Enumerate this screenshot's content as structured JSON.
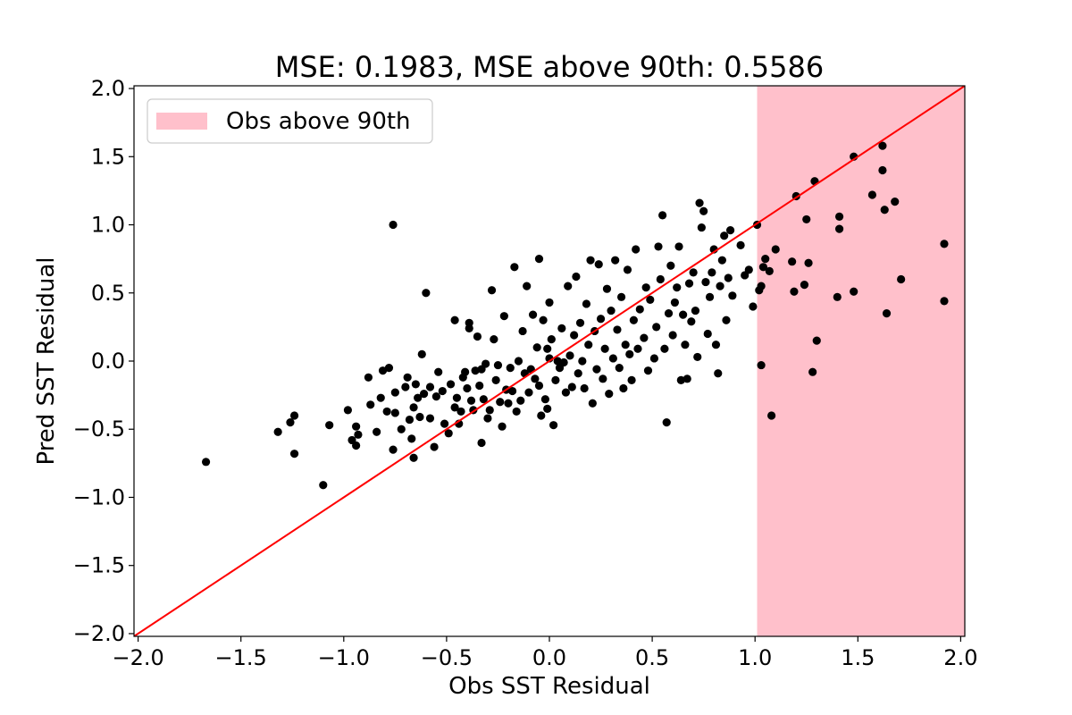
{
  "chart_data": {
    "type": "scatter",
    "title": "MSE: 0.1983, MSE above 90th: 0.5586",
    "xlabel": "Obs SST Residual",
    "ylabel": "Pred SST Residual",
    "xlim": [
      -2.02,
      2.02
    ],
    "ylim": [
      -2.02,
      2.02
    ],
    "xticks": [
      -2.0,
      -1.5,
      -1.0,
      -0.5,
      0.0,
      0.5,
      1.0,
      1.5,
      2.0
    ],
    "yticks": [
      -2.0,
      -1.5,
      -1.0,
      -0.5,
      0.0,
      0.5,
      1.0,
      1.5,
      2.0
    ],
    "xtick_labels": [
      "−2.0",
      "−1.5",
      "−1.0",
      "−0.5",
      "0.0",
      "0.5",
      "1.0",
      "1.5",
      "2.0"
    ],
    "ytick_labels": [
      "−2.0",
      "−1.5",
      "−1.0",
      "−0.5",
      "0.0",
      "0.5",
      "1.0",
      "1.5",
      "2.0"
    ],
    "grid": false,
    "legend": {
      "position": "top-left",
      "entries": [
        {
          "label": "Obs above 90th",
          "color": "#ffc0cb"
        }
      ]
    },
    "threshold_region": {
      "x_start": 1.01,
      "x_end": 2.02,
      "color": "#ffc0cb"
    },
    "identity_line": {
      "from": [
        -2.02,
        -2.02
      ],
      "to": [
        2.02,
        2.02
      ],
      "color": "#ff0000"
    },
    "point_color": "#000000",
    "points": [
      [
        -1.67,
        -0.74
      ],
      [
        -1.32,
        -0.52
      ],
      [
        -1.26,
        -0.45
      ],
      [
        -1.24,
        -0.4
      ],
      [
        -1.24,
        -0.68
      ],
      [
        -1.1,
        -0.91
      ],
      [
        -1.07,
        -0.47
      ],
      [
        -0.98,
        -0.36
      ],
      [
        -0.96,
        -0.58
      ],
      [
        -0.94,
        -0.48
      ],
      [
        -0.94,
        -0.62
      ],
      [
        -0.93,
        -0.54
      ],
      [
        -0.88,
        -0.12
      ],
      [
        -0.87,
        -0.32
      ],
      [
        -0.84,
        -0.52
      ],
      [
        -0.82,
        -0.27
      ],
      [
        -0.81,
        -0.07
      ],
      [
        -0.79,
        -0.37
      ],
      [
        -0.78,
        -0.05
      ],
      [
        -0.76,
        1.0
      ],
      [
        -0.76,
        -0.65
      ],
      [
        -0.75,
        -0.38
      ],
      [
        -0.75,
        -0.23
      ],
      [
        -0.72,
        -0.5
      ],
      [
        -0.7,
        -0.19
      ],
      [
        -0.69,
        -0.12
      ],
      [
        -0.68,
        -0.43
      ],
      [
        -0.67,
        -0.57
      ],
      [
        -0.66,
        -0.34
      ],
      [
        -0.66,
        -0.71
      ],
      [
        -0.65,
        -0.17
      ],
      [
        -0.64,
        -0.27
      ],
      [
        -0.63,
        -0.41
      ],
      [
        -0.62,
        0.05
      ],
      [
        -0.61,
        -0.24
      ],
      [
        -0.6,
        0.5
      ],
      [
        -0.58,
        -0.19
      ],
      [
        -0.58,
        -0.42
      ],
      [
        -0.56,
        -0.63
      ],
      [
        -0.55,
        -0.26
      ],
      [
        -0.54,
        -0.08
      ],
      [
        -0.52,
        -0.22
      ],
      [
        -0.51,
        -0.46
      ],
      [
        -0.49,
        -0.53
      ],
      [
        -0.48,
        -0.17
      ],
      [
        -0.46,
        -0.34
      ],
      [
        -0.46,
        0.3
      ],
      [
        -0.45,
        -0.27
      ],
      [
        -0.44,
        -0.46
      ],
      [
        -0.43,
        -0.37
      ],
      [
        -0.42,
        -0.12
      ],
      [
        -0.41,
        -0.08
      ],
      [
        -0.4,
        -0.2
      ],
      [
        -0.39,
        0.24
      ],
      [
        -0.39,
        0.28
      ],
      [
        -0.38,
        -0.29
      ],
      [
        -0.37,
        -0.36
      ],
      [
        -0.36,
        -0.07
      ],
      [
        -0.35,
        0.18
      ],
      [
        -0.34,
        -0.18
      ],
      [
        -0.33,
        -0.6
      ],
      [
        -0.33,
        -0.06
      ],
      [
        -0.32,
        -0.28
      ],
      [
        -0.31,
        -0.02
      ],
      [
        -0.3,
        -0.42
      ],
      [
        -0.29,
        -0.36
      ],
      [
        -0.28,
        0.52
      ],
      [
        -0.27,
        0.16
      ],
      [
        -0.26,
        -0.14
      ],
      [
        -0.25,
        -0.03
      ],
      [
        -0.24,
        -0.3
      ],
      [
        -0.23,
        -0.48
      ],
      [
        -0.22,
        0.33
      ],
      [
        -0.21,
        -0.21
      ],
      [
        -0.2,
        -0.31
      ],
      [
        -0.19,
        -0.05
      ],
      [
        -0.18,
        -0.22
      ],
      [
        -0.17,
        0.69
      ],
      [
        -0.16,
        -0.37
      ],
      [
        -0.15,
        0.0
      ],
      [
        -0.14,
        -0.29
      ],
      [
        -0.13,
        0.22
      ],
      [
        -0.12,
        -0.09
      ],
      [
        -0.11,
        0.55
      ],
      [
        -0.1,
        -0.23
      ],
      [
        -0.09,
        -0.06
      ],
      [
        -0.08,
        0.34
      ],
      [
        -0.07,
        -0.13
      ],
      [
        -0.06,
        0.1
      ],
      [
        -0.05,
        -0.18
      ],
      [
        -0.05,
        0.75
      ],
      [
        -0.04,
        -0.4
      ],
      [
        -0.03,
        0.3
      ],
      [
        -0.02,
        -0.28
      ],
      [
        -0.01,
        0.09
      ],
      [
        -0.01,
        -0.35
      ],
      [
        0.0,
        0.43
      ],
      [
        0.0,
        0.02
      ],
      [
        0.01,
        0.16
      ],
      [
        0.02,
        -0.47
      ],
      [
        0.03,
        -0.14
      ],
      [
        0.04,
        0.0
      ],
      [
        0.05,
        -0.05
      ],
      [
        0.06,
        0.24
      ],
      [
        0.07,
        -0.01
      ],
      [
        0.08,
        -0.23
      ],
      [
        0.09,
        0.55
      ],
      [
        0.1,
        0.04
      ],
      [
        0.11,
        -0.19
      ],
      [
        0.12,
        0.19
      ],
      [
        0.13,
        0.62
      ],
      [
        0.14,
        -0.09
      ],
      [
        0.15,
        0.28
      ],
      [
        0.16,
        0.0
      ],
      [
        0.17,
        -0.2
      ],
      [
        0.18,
        0.42
      ],
      [
        0.19,
        0.12
      ],
      [
        0.2,
        0.74
      ],
      [
        0.21,
        -0.31
      ],
      [
        0.22,
        0.22
      ],
      [
        0.23,
        -0.06
      ],
      [
        0.24,
        0.71
      ],
      [
        0.25,
        0.31
      ],
      [
        0.26,
        -0.13
      ],
      [
        0.27,
        0.09
      ],
      [
        0.28,
        0.53
      ],
      [
        0.29,
        -0.24
      ],
      [
        0.3,
        0.37
      ],
      [
        0.31,
        0.02
      ],
      [
        0.32,
        0.74
      ],
      [
        0.33,
        0.23
      ],
      [
        0.34,
        -0.05
      ],
      [
        0.35,
        0.47
      ],
      [
        0.36,
        -0.2
      ],
      [
        0.37,
        0.12
      ],
      [
        0.38,
        0.67
      ],
      [
        0.39,
        0.05
      ],
      [
        0.4,
        -0.14
      ],
      [
        0.41,
        0.3
      ],
      [
        0.42,
        0.82
      ],
      [
        0.43,
        0.09
      ],
      [
        0.44,
        0.38
      ],
      [
        0.46,
        0.17
      ],
      [
        0.47,
        0.54
      ],
      [
        0.48,
        -0.07
      ],
      [
        0.49,
        0.45
      ],
      [
        0.51,
        0.02
      ],
      [
        0.52,
        0.25
      ],
      [
        0.53,
        0.84
      ],
      [
        0.54,
        0.6
      ],
      [
        0.55,
        1.07
      ],
      [
        0.56,
        0.09
      ],
      [
        0.57,
        -0.45
      ],
      [
        0.58,
        0.35
      ],
      [
        0.59,
        0.7
      ],
      [
        0.6,
        0.19
      ],
      [
        0.61,
        0.43
      ],
      [
        0.62,
        0.54
      ],
      [
        0.63,
        0.84
      ],
      [
        0.64,
        -0.14
      ],
      [
        0.65,
        0.34
      ],
      [
        0.66,
        0.12
      ],
      [
        0.67,
        -0.13
      ],
      [
        0.68,
        0.57
      ],
      [
        0.69,
        0.29
      ],
      [
        0.7,
        0.65
      ],
      [
        0.71,
        0.37
      ],
      [
        0.72,
        0.03
      ],
      [
        0.73,
        1.16
      ],
      [
        0.74,
        0.98
      ],
      [
        0.75,
        1.1
      ],
      [
        0.76,
        0.58
      ],
      [
        0.77,
        0.2
      ],
      [
        0.78,
        0.47
      ],
      [
        0.79,
        0.65
      ],
      [
        0.8,
        0.82
      ],
      [
        0.81,
        0.12
      ],
      [
        0.82,
        -0.09
      ],
      [
        0.83,
        0.55
      ],
      [
        0.84,
        0.74
      ],
      [
        0.85,
        0.92
      ],
      [
        0.86,
        0.3
      ],
      [
        0.87,
        0.61
      ],
      [
        0.88,
        0.96
      ],
      [
        0.89,
        0.48
      ],
      [
        0.93,
        0.85
      ],
      [
        0.95,
        0.63
      ],
      [
        0.97,
        0.67
      ],
      [
        0.99,
        0.4
      ],
      [
        1.01,
        1.0
      ],
      [
        1.02,
        0.52
      ],
      [
        1.03,
        0.55
      ],
      [
        1.03,
        -0.03
      ],
      [
        1.04,
        0.69
      ],
      [
        1.05,
        0.75
      ],
      [
        1.07,
        0.66
      ],
      [
        1.08,
        -0.4
      ],
      [
        1.1,
        0.82
      ],
      [
        1.18,
        0.73
      ],
      [
        1.19,
        0.51
      ],
      [
        1.2,
        1.21
      ],
      [
        1.24,
        0.56
      ],
      [
        1.25,
        1.04
      ],
      [
        1.26,
        0.72
      ],
      [
        1.28,
        -0.08
      ],
      [
        1.29,
        1.32
      ],
      [
        1.3,
        0.15
      ],
      [
        1.4,
        0.47
      ],
      [
        1.41,
        1.06
      ],
      [
        1.41,
        0.97
      ],
      [
        1.48,
        0.51
      ],
      [
        1.48,
        1.5
      ],
      [
        1.57,
        1.22
      ],
      [
        1.62,
        1.58
      ],
      [
        1.62,
        1.4
      ],
      [
        1.63,
        1.11
      ],
      [
        1.64,
        0.35
      ],
      [
        1.68,
        1.17
      ],
      [
        1.71,
        0.6
      ],
      [
        1.92,
        0.86
      ],
      [
        1.92,
        0.44
      ]
    ]
  }
}
